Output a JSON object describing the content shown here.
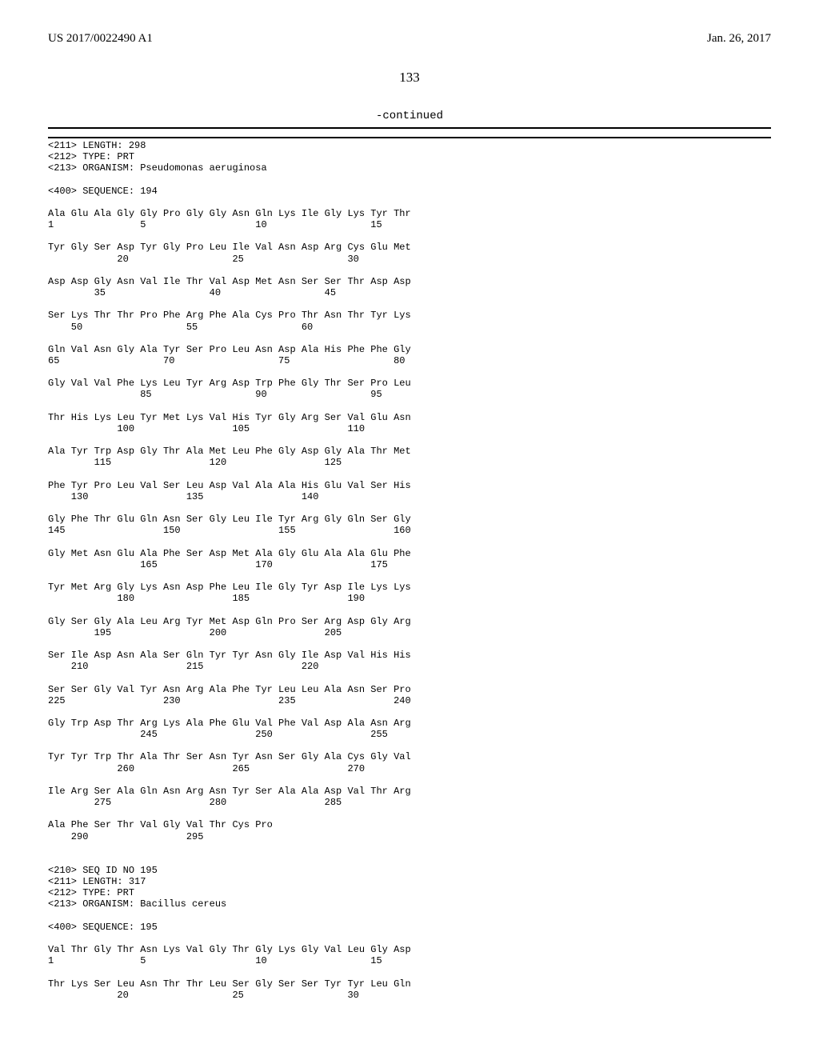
{
  "header": {
    "left": "US 2017/0022490 A1",
    "right": "Jan. 26, 2017"
  },
  "page_number": "133",
  "continued_label": "-continued",
  "sequence_text": "<211> LENGTH: 298\n<212> TYPE: PRT\n<213> ORGANISM: Pseudomonas aeruginosa\n\n<400> SEQUENCE: 194\n\nAla Glu Ala Gly Gly Pro Gly Gly Asn Gln Lys Ile Gly Lys Tyr Thr\n1               5                   10                  15\n\nTyr Gly Ser Asp Tyr Gly Pro Leu Ile Val Asn Asp Arg Cys Glu Met\n            20                  25                  30\n\nAsp Asp Gly Asn Val Ile Thr Val Asp Met Asn Ser Ser Thr Asp Asp\n        35                  40                  45\n\nSer Lys Thr Thr Pro Phe Arg Phe Ala Cys Pro Thr Asn Thr Tyr Lys\n    50                  55                  60\n\nGln Val Asn Gly Ala Tyr Ser Pro Leu Asn Asp Ala His Phe Phe Gly\n65                  70                  75                  80\n\nGly Val Val Phe Lys Leu Tyr Arg Asp Trp Phe Gly Thr Ser Pro Leu\n                85                  90                  95\n\nThr His Lys Leu Tyr Met Lys Val His Tyr Gly Arg Ser Val Glu Asn\n            100                 105                 110\n\nAla Tyr Trp Asp Gly Thr Ala Met Leu Phe Gly Asp Gly Ala Thr Met\n        115                 120                 125\n\nPhe Tyr Pro Leu Val Ser Leu Asp Val Ala Ala His Glu Val Ser His\n    130                 135                 140\n\nGly Phe Thr Glu Gln Asn Ser Gly Leu Ile Tyr Arg Gly Gln Ser Gly\n145                 150                 155                 160\n\nGly Met Asn Glu Ala Phe Ser Asp Met Ala Gly Glu Ala Ala Glu Phe\n                165                 170                 175\n\nTyr Met Arg Gly Lys Asn Asp Phe Leu Ile Gly Tyr Asp Ile Lys Lys\n            180                 185                 190\n\nGly Ser Gly Ala Leu Arg Tyr Met Asp Gln Pro Ser Arg Asp Gly Arg\n        195                 200                 205\n\nSer Ile Asp Asn Ala Ser Gln Tyr Tyr Asn Gly Ile Asp Val His His\n    210                 215                 220\n\nSer Ser Gly Val Tyr Asn Arg Ala Phe Tyr Leu Leu Ala Asn Ser Pro\n225                 230                 235                 240\n\nGly Trp Asp Thr Arg Lys Ala Phe Glu Val Phe Val Asp Ala Asn Arg\n                245                 250                 255\n\nTyr Tyr Trp Thr Ala Thr Ser Asn Tyr Asn Ser Gly Ala Cys Gly Val\n            260                 265                 270\n\nIle Arg Ser Ala Gln Asn Arg Asn Tyr Ser Ala Ala Asp Val Thr Arg\n        275                 280                 285\n\nAla Phe Ser Thr Val Gly Val Thr Cys Pro\n    290                 295\n\n\n<210> SEQ ID NO 195\n<211> LENGTH: 317\n<212> TYPE: PRT\n<213> ORGANISM: Bacillus cereus\n\n<400> SEQUENCE: 195\n\nVal Thr Gly Thr Asn Lys Val Gly Thr Gly Lys Gly Val Leu Gly Asp\n1               5                   10                  15\n\nThr Lys Ser Leu Asn Thr Thr Leu Ser Gly Ser Ser Tyr Tyr Leu Gln\n            20                  25                  30"
}
